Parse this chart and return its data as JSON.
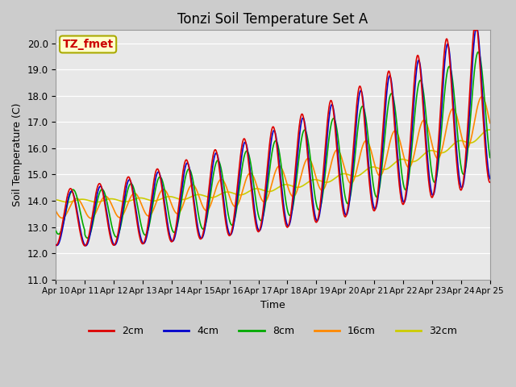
{
  "title": "Tonzi Soil Temperature Set A",
  "xlabel": "Time",
  "ylabel": "Soil Temperature (C)",
  "ylim": [
    11.0,
    20.5
  ],
  "yticks": [
    11.0,
    12.0,
    13.0,
    14.0,
    15.0,
    16.0,
    17.0,
    18.0,
    19.0,
    20.0
  ],
  "legend_labels": [
    "2cm",
    "4cm",
    "8cm",
    "16cm",
    "32cm"
  ],
  "legend_colors": [
    "#dd0000",
    "#0000cc",
    "#00aa00",
    "#ff8800",
    "#cccc00"
  ],
  "annotation_text": "TZ_fmet",
  "annotation_color": "#cc0000",
  "annotation_bg": "#ffffcc",
  "annotation_border": "#aaaa00",
  "xtick_labels": [
    "Apr 10",
    "Apr 11",
    "Apr 12",
    "Apr 13",
    "Apr 14",
    "Apr 15",
    "Apr 16",
    "Apr 17",
    "Apr 18",
    "Apr 19",
    "Apr 20",
    "Apr 21",
    "Apr 22",
    "Apr 23",
    "Apr 24",
    "Apr 25"
  ],
  "xtick_positions": [
    0,
    1,
    2,
    3,
    4,
    5,
    6,
    7,
    8,
    9,
    10,
    11,
    12,
    13,
    14,
    15
  ]
}
